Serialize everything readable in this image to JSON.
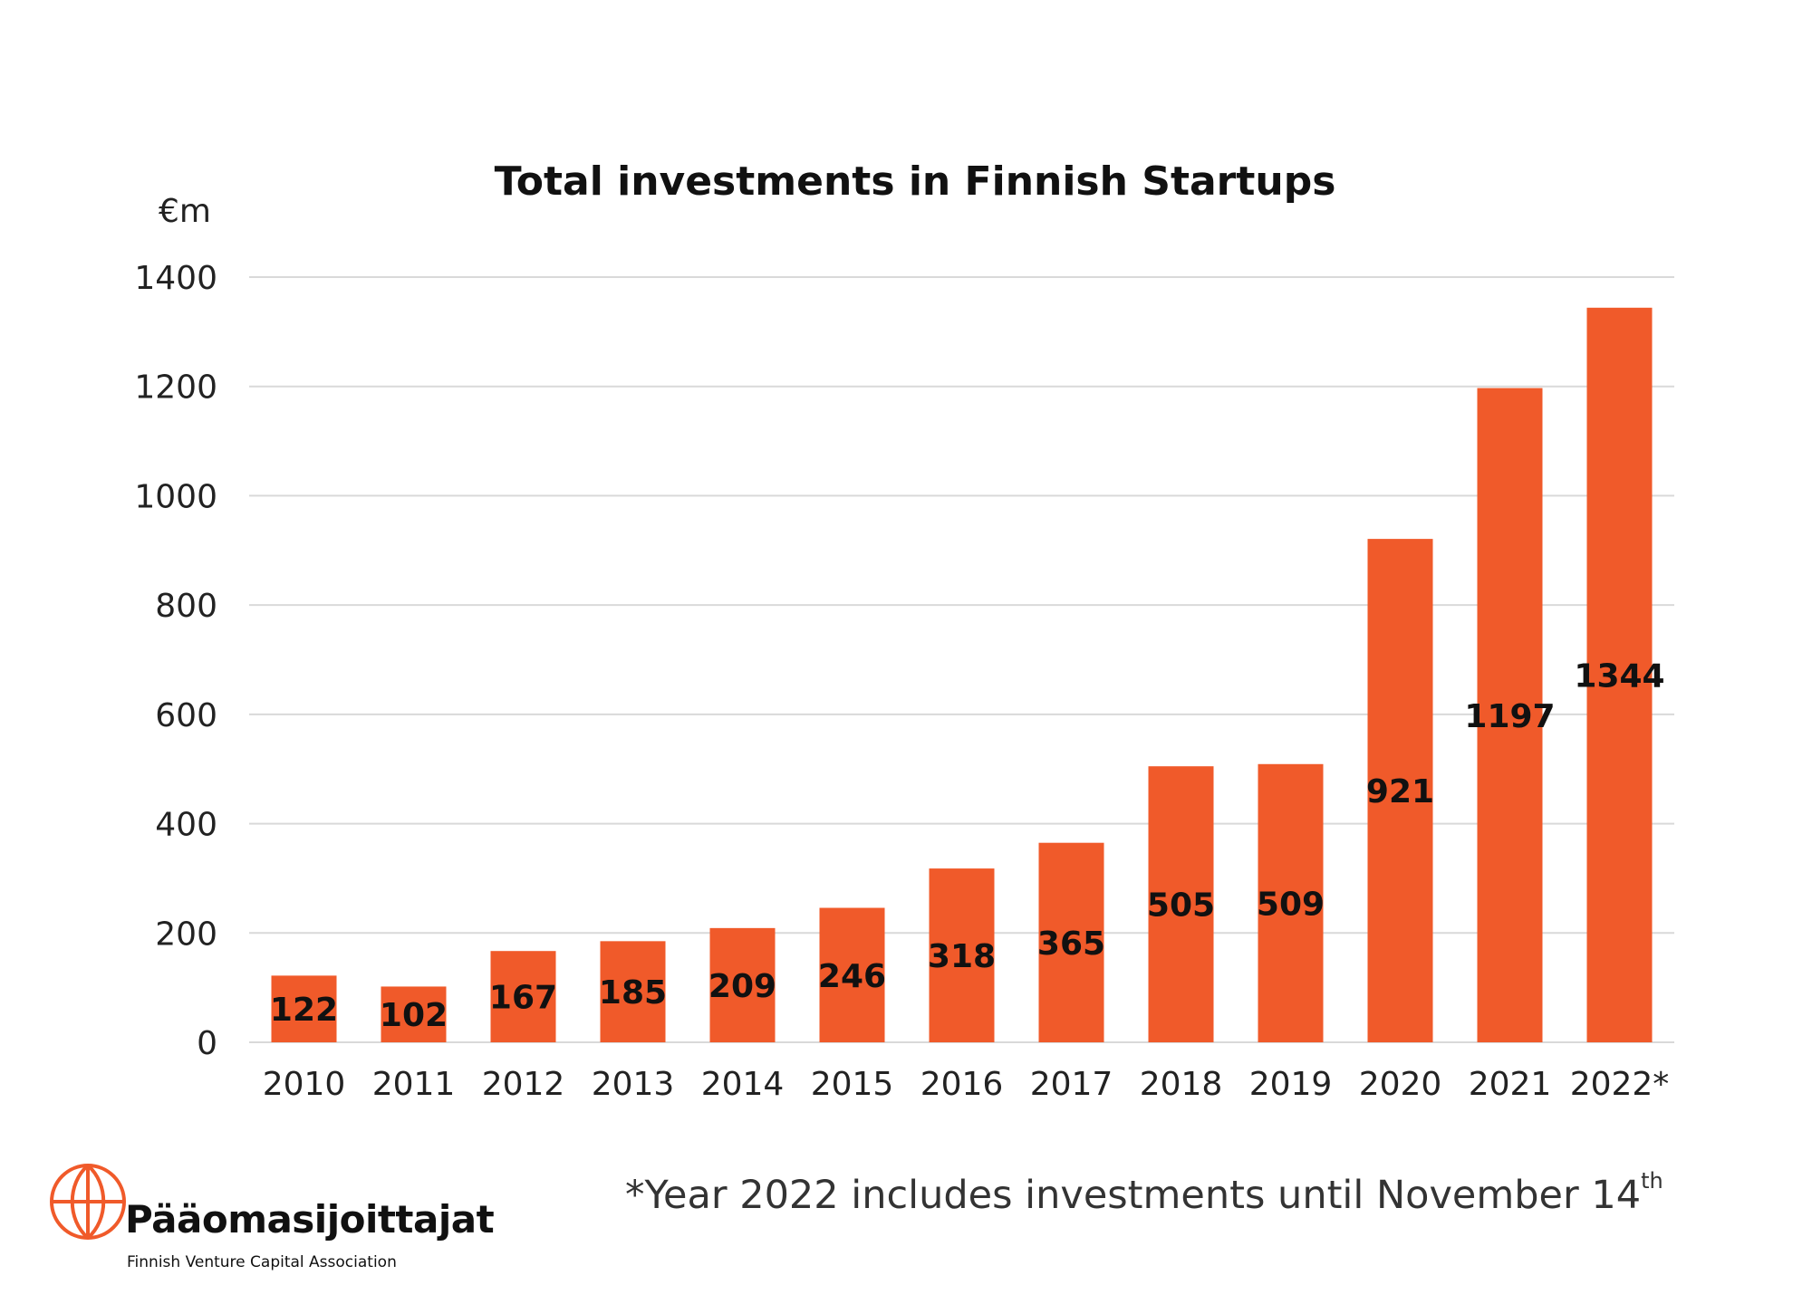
{
  "chart_data": {
    "type": "bar",
    "title": "Total investments in Finnish Startups",
    "ylabel": "€m",
    "xlabel": "",
    "categories": [
      "2010",
      "2011",
      "2012",
      "2013",
      "2014",
      "2015",
      "2016",
      "2017",
      "2018",
      "2019",
      "2020",
      "2021",
      "2022*"
    ],
    "values": [
      122,
      102,
      167,
      185,
      209,
      246,
      318,
      365,
      505,
      509,
      921,
      1197,
      1344
    ],
    "data_labels": [
      "122",
      "102",
      "167",
      "185",
      "209",
      "246",
      "318",
      "365",
      "505",
      "509",
      "921",
      "1197",
      "1344"
    ],
    "ylim": [
      0,
      1400
    ],
    "yticks": [
      0,
      200,
      400,
      600,
      800,
      1000,
      1200,
      1400
    ],
    "grid": true,
    "bar_color": "#f05a2a",
    "gridline_color": "#d9d9d9"
  },
  "footnote": {
    "text": "*Year 2022 includes investments until November 14",
    "superscript": "th"
  },
  "logo": {
    "name": "Pääomasijoittajat",
    "subtitle": "Finnish Venture Capital Association",
    "color": "#f05a2a"
  }
}
